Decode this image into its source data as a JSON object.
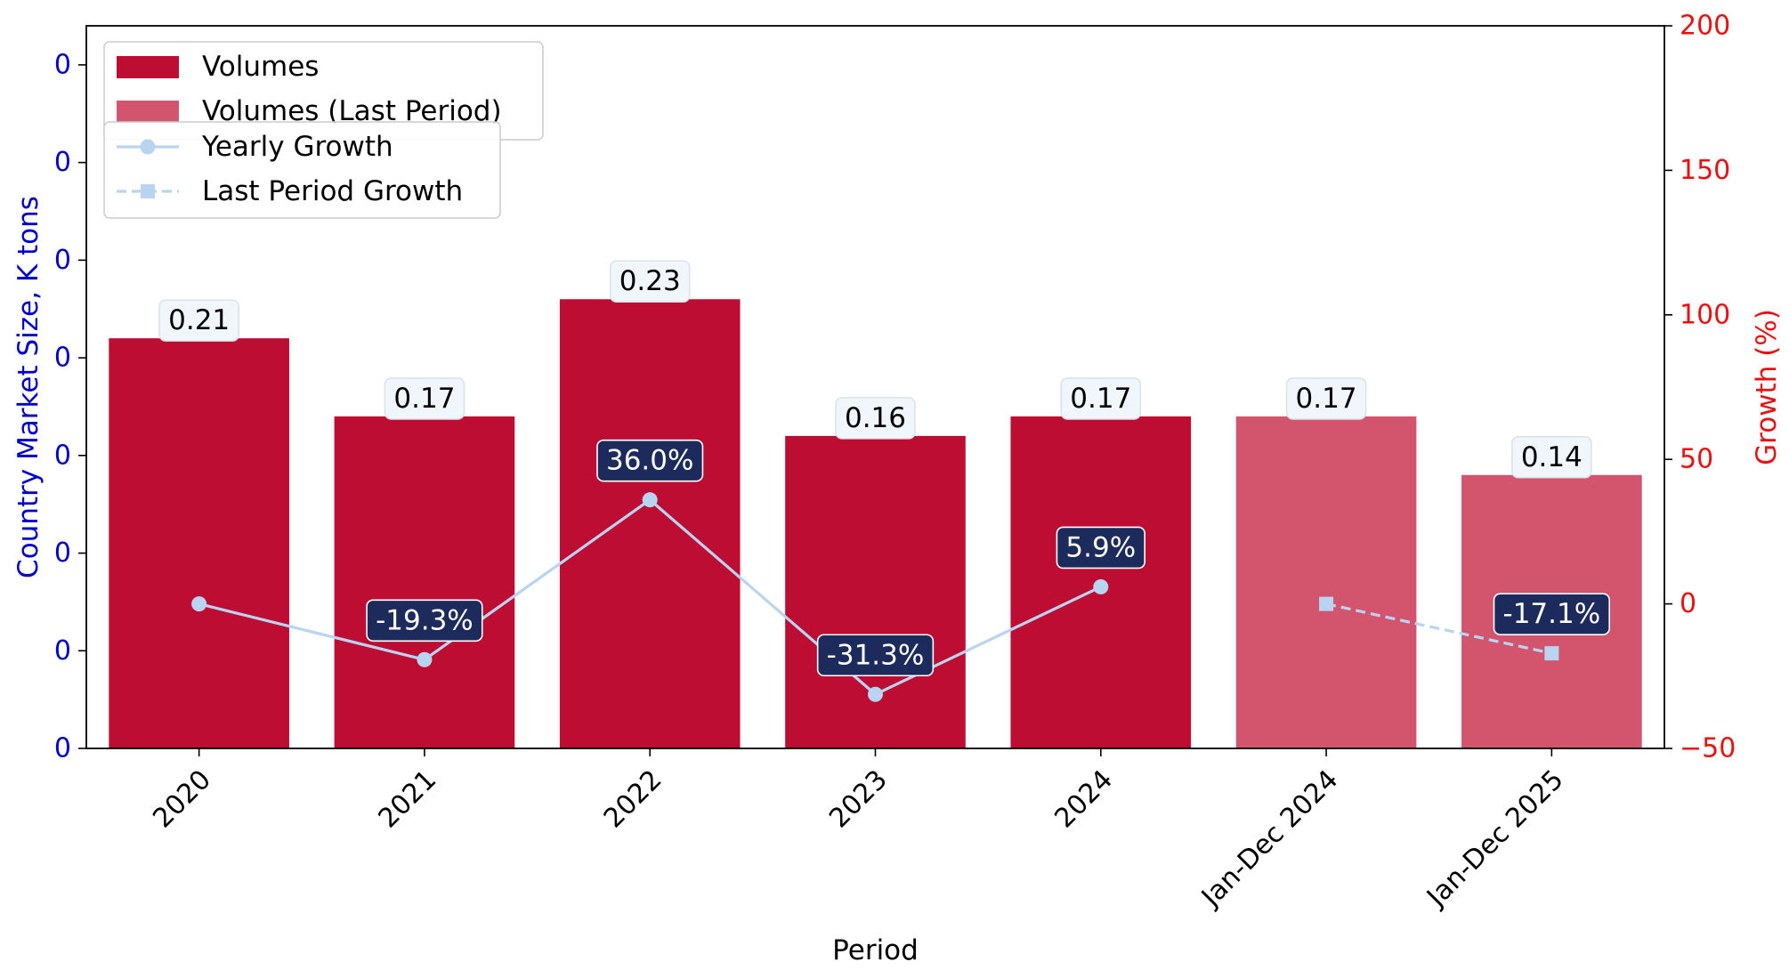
{
  "chart_data": {
    "type": "bar",
    "categories": [
      "2020",
      "2021",
      "2022",
      "2023",
      "2024",
      "Jan-Dec 2024",
      "Jan-Dec 2025"
    ],
    "series": [
      {
        "name": "Volumes",
        "values": [
          0.21,
          0.17,
          0.23,
          0.16,
          0.17,
          null,
          null
        ],
        "labels": [
          "0.21",
          "0.17",
          "0.23",
          "0.16",
          "0.17",
          null,
          null
        ],
        "color": "#bd0d32"
      },
      {
        "name": "Volumes (Last Period)",
        "values": [
          null,
          null,
          null,
          null,
          null,
          0.17,
          0.14
        ],
        "labels": [
          null,
          null,
          null,
          null,
          null,
          "0.17",
          "0.14"
        ],
        "color": "#d2546d"
      },
      {
        "name": "Yearly Growth",
        "type": "line",
        "axis": "right",
        "values": [
          0,
          -19.3,
          36.0,
          -31.3,
          5.9,
          null,
          null
        ],
        "labels": [
          null,
          "-19.3%",
          "36.0%",
          "-31.3%",
          "5.9%",
          null,
          null
        ],
        "color": "#b9d4f1",
        "marker": "circle",
        "linestyle": "solid"
      },
      {
        "name": "Last Period Growth",
        "type": "line",
        "axis": "right",
        "values": [
          null,
          null,
          null,
          null,
          null,
          0,
          -17.1
        ],
        "labels": [
          null,
          null,
          null,
          null,
          null,
          null,
          "-17.1%"
        ],
        "color": "#b9d4f1",
        "marker": "square",
        "linestyle": "dashed"
      }
    ],
    "xlabel": "Period",
    "ylabel": "Country Market Size, K tons",
    "ylabel_right": "Growth (%)",
    "ylim": [
      0,
      0.37
    ],
    "ylim_right": [
      -50,
      200
    ],
    "y_ticks": [
      0,
      0.05,
      0.1,
      0.15,
      0.2,
      0.25,
      0.3,
      0.35
    ],
    "y_tick_labels": [
      "0",
      "0",
      "0",
      "0",
      "0",
      "0",
      "0",
      "0"
    ],
    "y_right_ticks": [
      -50,
      0,
      50,
      100,
      150,
      200
    ],
    "y_right_tick_labels": [
      "−50",
      "0",
      "50",
      "100",
      "150",
      "200"
    ],
    "left_axis_color": "#0000cc",
    "right_axis_color": "#e8110f",
    "label_box_color": "#f0f6fc",
    "growth_box_color": "#1d2b5c",
    "grid": false,
    "legend_placement": "top-left"
  }
}
